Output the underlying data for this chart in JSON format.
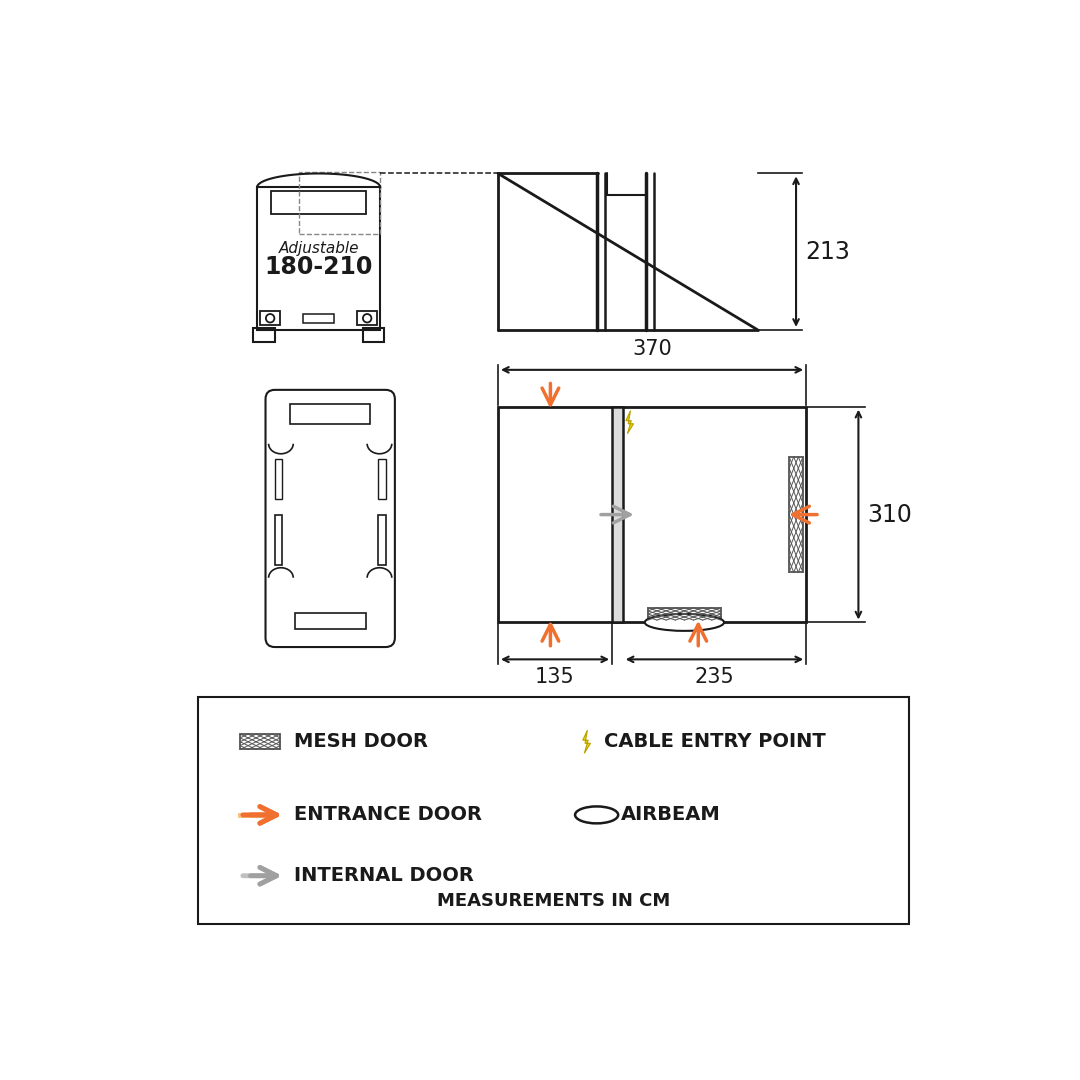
{
  "bg_color": "#ffffff",
  "line_color": "#1a1a1a",
  "orange_color": "#f07030",
  "gray_color": "#a0a0a0",
  "yellow_color": "#e8d800",
  "mesh_color": "#555555",
  "dim_font_size": 15,
  "legend_font_size": 13,
  "dim_213": "213",
  "dim_370": "370",
  "dim_310": "310",
  "dim_135": "135",
  "dim_235": "235",
  "adj_text": "Adjustable",
  "adj_size": "180-210",
  "meas_text": "MEASUREMENTS IN CM"
}
